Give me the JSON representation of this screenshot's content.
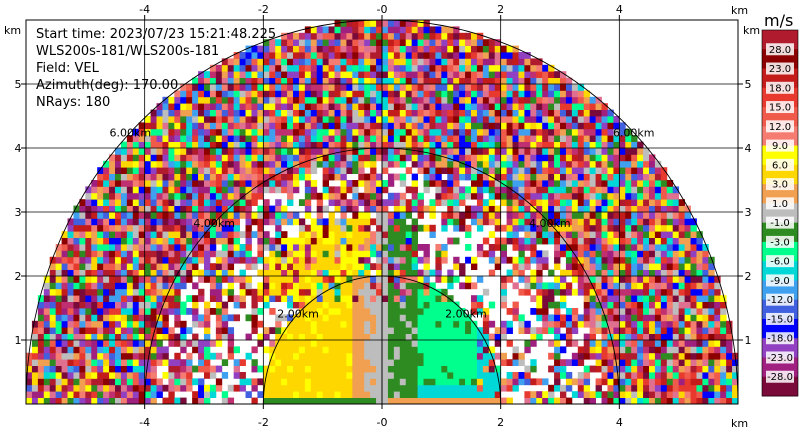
{
  "chart_data": {
    "type": "heatmap",
    "subtype": "radar-ppi-semicircle",
    "info_lines": [
      "Start time: 2023/07/23 15:21:48.225",
      "WLS200s-181/WLS200s-181",
      "Field: VEL",
      "Azimuth(deg): 170.00",
      "NRays: 180"
    ],
    "x_unit": "km",
    "y_unit": "km",
    "xlim": [
      -6,
      6
    ],
    "ylim": [
      0,
      6
    ],
    "x_ticks": [
      -4,
      -2,
      0,
      2,
      4
    ],
    "x_tick_labels": [
      "-4",
      "-2",
      "-0",
      "2",
      "4"
    ],
    "y_ticks": [
      1,
      2,
      3,
      4,
      5
    ],
    "y_tick_labels": [
      "1",
      "2",
      "3",
      "4",
      "5"
    ],
    "grid": true,
    "max_range_km": 6,
    "range_rings": [
      {
        "range_km": 2,
        "label": "2.00km"
      },
      {
        "range_km": 4,
        "label": "4.00km"
      },
      {
        "range_km": 6,
        "label": "6.00km"
      }
    ],
    "colorbar": {
      "title": "m/s",
      "placement": "right",
      "labels": [
        "28.0",
        "23.0",
        "18.0",
        "15.0",
        "12.0",
        "9.0",
        "6.0",
        "3.0",
        "1.0",
        "-1.0",
        "-3.0",
        "-6.0",
        "-9.0",
        "-12.0",
        "-15.0",
        "-18.0",
        "-23.0",
        "-28.0"
      ],
      "colors": [
        "#b01c2e",
        "#8c0000",
        "#c41b1b",
        "#e8392f",
        "#ef5a4b",
        "#f47c70",
        "#ffff00",
        "#ffd700",
        "#f0a050",
        "#bdbdbd",
        "#2e8b22",
        "#00ff8c",
        "#00d8d8",
        "#40a0f0",
        "#4060e0",
        "#0000ff",
        "#9040c0",
        "#a02080",
        "#7a0a3a"
      ]
    }
  }
}
